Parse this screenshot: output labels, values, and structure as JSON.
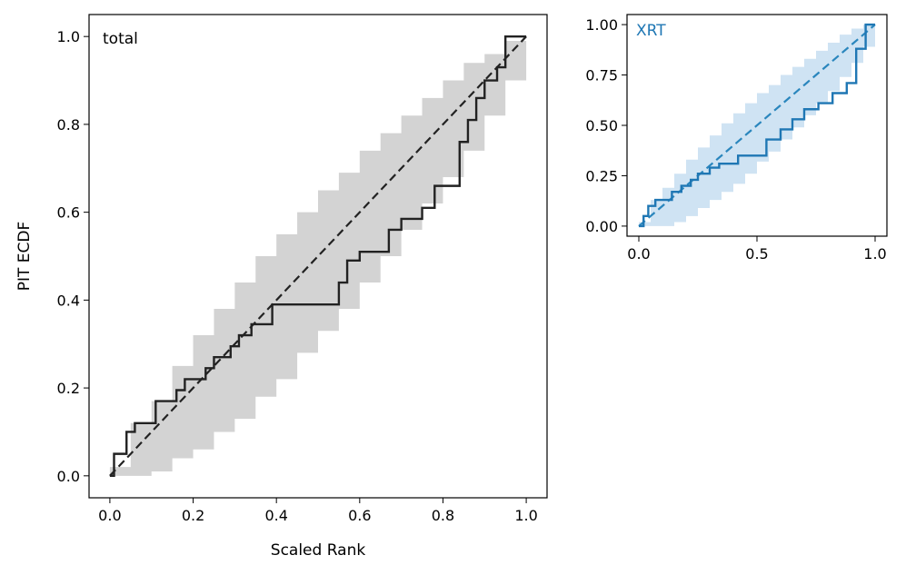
{
  "chart_data": [
    {
      "type": "line",
      "panel_label": "total",
      "xlabel": "Scaled Rank",
      "ylabel": "PIT ECDF",
      "xlim": [
        -0.05,
        1.05
      ],
      "ylim": [
        -0.05,
        1.05
      ],
      "xticks": [
        "0.0",
        "0.2",
        "0.4",
        "0.6",
        "0.8",
        "1.0"
      ],
      "yticks": [
        "0.0",
        "0.2",
        "0.4",
        "0.6",
        "0.8",
        "1.0"
      ],
      "colors": {
        "ecdf": "#222222",
        "band": "#d3d3d3",
        "reference": "#222222"
      },
      "reference_line": {
        "x": [
          0,
          1
        ],
        "y": [
          0,
          1
        ],
        "style": "dashed"
      },
      "ecdf": {
        "x": [
          0.0,
          0.01,
          0.01,
          0.04,
          0.04,
          0.06,
          0.06,
          0.11,
          0.11,
          0.16,
          0.16,
          0.18,
          0.18,
          0.23,
          0.23,
          0.25,
          0.25,
          0.29,
          0.29,
          0.31,
          0.31,
          0.34,
          0.34,
          0.39,
          0.39,
          0.55,
          0.55,
          0.57,
          0.57,
          0.6,
          0.6,
          0.67,
          0.67,
          0.7,
          0.7,
          0.75,
          0.75,
          0.78,
          0.78,
          0.84,
          0.84,
          0.86,
          0.86,
          0.88,
          0.88,
          0.9,
          0.9,
          0.93,
          0.93,
          0.95,
          0.95,
          1.0
        ],
        "y": [
          0.0,
          0.0,
          0.05,
          0.05,
          0.1,
          0.1,
          0.12,
          0.12,
          0.17,
          0.17,
          0.195,
          0.195,
          0.22,
          0.22,
          0.245,
          0.245,
          0.27,
          0.27,
          0.295,
          0.295,
          0.32,
          0.32,
          0.345,
          0.345,
          0.39,
          0.39,
          0.44,
          0.44,
          0.49,
          0.49,
          0.51,
          0.51,
          0.56,
          0.56,
          0.585,
          0.585,
          0.61,
          0.61,
          0.66,
          0.66,
          0.76,
          0.76,
          0.81,
          0.81,
          0.86,
          0.86,
          0.9,
          0.9,
          0.93,
          0.93,
          1.0,
          1.0
        ]
      },
      "band": {
        "x": [
          0.0,
          0.05,
          0.1,
          0.15,
          0.2,
          0.25,
          0.3,
          0.35,
          0.4,
          0.45,
          0.5,
          0.55,
          0.6,
          0.65,
          0.7,
          0.75,
          0.8,
          0.85,
          0.9,
          0.95,
          1.0
        ],
        "upper": [
          0.02,
          0.12,
          0.17,
          0.25,
          0.32,
          0.38,
          0.44,
          0.5,
          0.55,
          0.6,
          0.65,
          0.69,
          0.74,
          0.78,
          0.82,
          0.86,
          0.9,
          0.94,
          0.96,
          0.99,
          1.0
        ],
        "lower": [
          0.0,
          0.0,
          0.01,
          0.04,
          0.06,
          0.1,
          0.13,
          0.18,
          0.22,
          0.28,
          0.33,
          0.38,
          0.44,
          0.5,
          0.56,
          0.62,
          0.68,
          0.74,
          0.82,
          0.9,
          0.99
        ]
      }
    },
    {
      "type": "line",
      "panel_label": "XRT",
      "xlabel": "",
      "ylabel": "",
      "xlim": [
        -0.05,
        1.05
      ],
      "ylim": [
        -0.05,
        1.05
      ],
      "xticks": [
        "0.0",
        "0.5",
        "1.0"
      ],
      "yticks": [
        "0.00",
        "0.25",
        "0.50",
        "0.75",
        "1.00"
      ],
      "colors": {
        "ecdf": "#1f77b4",
        "band": "#cfe3f3",
        "reference": "#2a86bd"
      },
      "reference_line": {
        "x": [
          0,
          1
        ],
        "y": [
          0,
          1
        ],
        "style": "dashed"
      },
      "ecdf": {
        "x": [
          0.0,
          0.02,
          0.02,
          0.04,
          0.04,
          0.07,
          0.07,
          0.14,
          0.14,
          0.18,
          0.18,
          0.22,
          0.22,
          0.25,
          0.25,
          0.3,
          0.3,
          0.34,
          0.34,
          0.42,
          0.42,
          0.54,
          0.54,
          0.6,
          0.6,
          0.65,
          0.65,
          0.7,
          0.7,
          0.76,
          0.76,
          0.82,
          0.82,
          0.88,
          0.88,
          0.92,
          0.92,
          0.96,
          0.96,
          1.0
        ],
        "y": [
          0.0,
          0.0,
          0.05,
          0.05,
          0.1,
          0.1,
          0.13,
          0.13,
          0.17,
          0.17,
          0.2,
          0.2,
          0.23,
          0.23,
          0.26,
          0.26,
          0.29,
          0.29,
          0.31,
          0.31,
          0.35,
          0.35,
          0.43,
          0.43,
          0.48,
          0.48,
          0.53,
          0.53,
          0.58,
          0.58,
          0.61,
          0.61,
          0.66,
          0.66,
          0.71,
          0.71,
          0.88,
          0.88,
          1.0,
          1.0
        ]
      },
      "band": {
        "x": [
          0.0,
          0.05,
          0.1,
          0.15,
          0.2,
          0.25,
          0.3,
          0.35,
          0.4,
          0.45,
          0.5,
          0.55,
          0.6,
          0.65,
          0.7,
          0.75,
          0.8,
          0.85,
          0.9,
          0.95,
          1.0
        ],
        "upper": [
          0.02,
          0.13,
          0.19,
          0.26,
          0.33,
          0.39,
          0.45,
          0.51,
          0.56,
          0.61,
          0.66,
          0.7,
          0.75,
          0.79,
          0.83,
          0.87,
          0.91,
          0.95,
          0.98,
          1.0,
          1.0
        ],
        "lower": [
          0.0,
          0.0,
          0.0,
          0.02,
          0.05,
          0.09,
          0.13,
          0.17,
          0.21,
          0.26,
          0.32,
          0.37,
          0.43,
          0.49,
          0.55,
          0.61,
          0.67,
          0.74,
          0.81,
          0.89,
          0.98
        ]
      }
    }
  ]
}
